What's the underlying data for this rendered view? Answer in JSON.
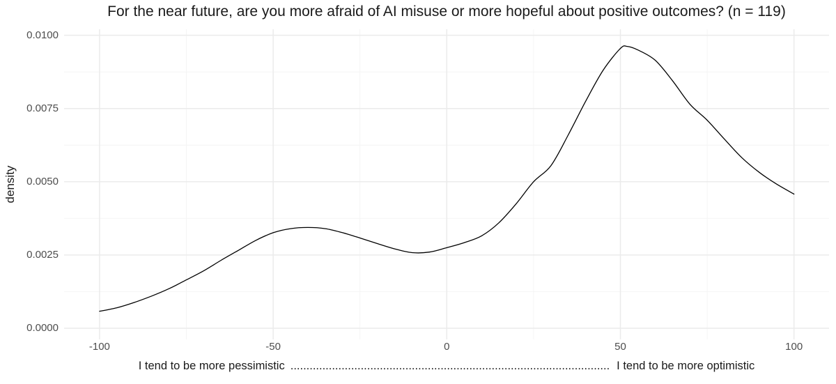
{
  "chart_data": {
    "type": "line",
    "subtype": "density-curve",
    "title": "For the near future, are you more afraid of AI misuse or more hopeful about positive outcomes? (n = 119)",
    "n": 119,
    "ylabel": "density",
    "xlabel_left": "I tend to be more pessimistic",
    "xlabel_dots": "....................................................................................................",
    "xlabel_right": "I tend to be more optimistic",
    "legend": "none",
    "grid": "major-and-minor",
    "x_axis": {
      "range": [
        -110,
        110
      ],
      "ticks": [
        {
          "value": -100,
          "label": "-100"
        },
        {
          "value": -50,
          "label": "-50"
        },
        {
          "value": 0,
          "label": "0"
        },
        {
          "value": 50,
          "label": "50"
        },
        {
          "value": 100,
          "label": "100"
        }
      ],
      "minor_ticks": [
        -75,
        -25,
        25,
        75
      ]
    },
    "y_axis": {
      "range": [
        -0.0004,
        0.0102
      ],
      "ticks": [
        {
          "value": 0.01,
          "label": "0.0100"
        },
        {
          "value": 0.0075,
          "label": "0.0075"
        },
        {
          "value": 0.005,
          "label": "0.0050"
        },
        {
          "value": 0.0025,
          "label": "0.0025"
        },
        {
          "value": 0.0,
          "label": "0.0000"
        }
      ],
      "minor_ticks": [
        0.00125,
        0.00375,
        0.00625,
        0.00875
      ]
    },
    "series": [
      {
        "name": "density",
        "points": [
          [
            -100,
            0.00058
          ],
          [
            -95,
            0.0007
          ],
          [
            -90,
            0.00088
          ],
          [
            -85,
            0.0011
          ],
          [
            -80,
            0.00135
          ],
          [
            -75,
            0.00165
          ],
          [
            -70,
            0.00196
          ],
          [
            -65,
            0.00232
          ],
          [
            -60,
            0.00266
          ],
          [
            -55,
            0.003
          ],
          [
            -50,
            0.00326
          ],
          [
            -45,
            0.0034
          ],
          [
            -40,
            0.00344
          ],
          [
            -35,
            0.0034
          ],
          [
            -30,
            0.00326
          ],
          [
            -25,
            0.00308
          ],
          [
            -20,
            0.00289
          ],
          [
            -15,
            0.00271
          ],
          [
            -10,
            0.00258
          ],
          [
            -5,
            0.0026
          ],
          [
            0,
            0.00275
          ],
          [
            5,
            0.00292
          ],
          [
            10,
            0.00315
          ],
          [
            15,
            0.0036
          ],
          [
            20,
            0.00425
          ],
          [
            25,
            0.005
          ],
          [
            30,
            0.00555
          ],
          [
            35,
            0.0066
          ],
          [
            40,
            0.00775
          ],
          [
            45,
            0.0088
          ],
          [
            50,
            0.00955
          ],
          [
            52,
            0.00962
          ],
          [
            55,
            0.0095
          ],
          [
            60,
            0.00915
          ],
          [
            65,
            0.00845
          ],
          [
            70,
            0.00765
          ],
          [
            75,
            0.0071
          ],
          [
            80,
            0.00645
          ],
          [
            85,
            0.00582
          ],
          [
            90,
            0.00532
          ],
          [
            95,
            0.00492
          ],
          [
            100,
            0.00458
          ]
        ]
      }
    ],
    "annotations": {
      "local_max": {
        "x": -41,
        "density": 0.0034
      },
      "local_min": {
        "x": -9,
        "density": 0.0026
      },
      "peak": {
        "x": 51,
        "density": 0.0096
      }
    },
    "colors": {
      "background": "#FFFFFF",
      "grid_major": "#EBEBEB",
      "grid_minor": "#F4F4F4",
      "curve": "#000000",
      "axis_text": "#4D4D4D",
      "title_text": "#1A1A1A"
    }
  }
}
